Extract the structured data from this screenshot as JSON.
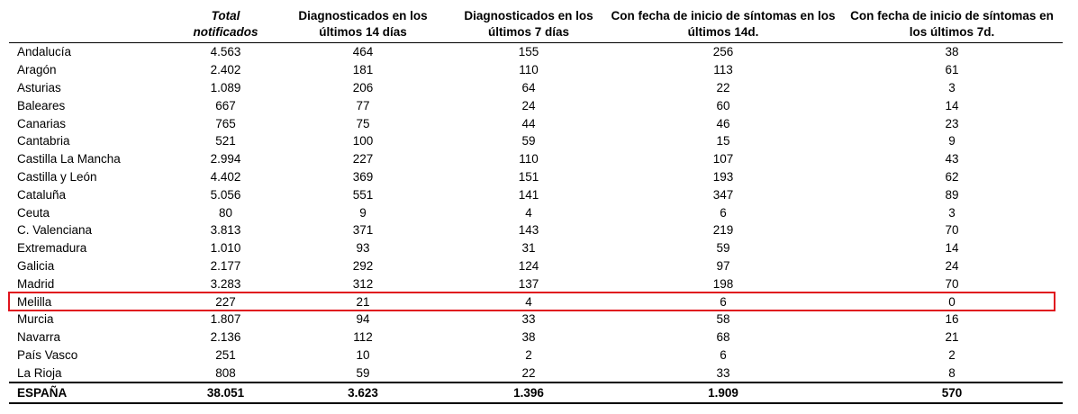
{
  "headers": [
    "",
    "Total notificados",
    "Diagnosticados en los últimos 14 días",
    "Diagnosticados en los últimos 7 días",
    "Con fecha de inicio de síntomas en los últimos 14d.",
    "Con fecha de inicio de síntomas en los últimos 7d."
  ],
  "rows": [
    [
      "Andalucía",
      "4.563",
      "464",
      "155",
      "256",
      "38"
    ],
    [
      "Aragón",
      "2.402",
      "181",
      "110",
      "113",
      "61"
    ],
    [
      "Asturias",
      "1.089",
      "206",
      "64",
      "22",
      "3"
    ],
    [
      "Baleares",
      "667",
      "77",
      "24",
      "60",
      "14"
    ],
    [
      "Canarias",
      "765",
      "75",
      "44",
      "46",
      "23"
    ],
    [
      "Cantabria",
      "521",
      "100",
      "59",
      "15",
      "9"
    ],
    [
      "Castilla La Mancha",
      "2.994",
      "227",
      "110",
      "107",
      "43"
    ],
    [
      "Castilla y León",
      "4.402",
      "369",
      "151",
      "193",
      "62"
    ],
    [
      "Cataluña",
      "5.056",
      "551",
      "141",
      "347",
      "89"
    ],
    [
      "Ceuta",
      "80",
      "9",
      "4",
      "6",
      "3"
    ],
    [
      "C. Valenciana",
      "3.813",
      "371",
      "143",
      "219",
      "70"
    ],
    [
      "Extremadura",
      "1.010",
      "93",
      "31",
      "59",
      "14"
    ],
    [
      "Galicia",
      "2.177",
      "292",
      "124",
      "97",
      "24"
    ],
    [
      "Madrid",
      "3.283",
      "312",
      "137",
      "198",
      "70"
    ],
    [
      "Melilla",
      "227",
      "21",
      "4",
      "6",
      "0"
    ],
    [
      "Murcia",
      "1.807",
      "94",
      "33",
      "58",
      "16"
    ],
    [
      "Navarra",
      "2.136",
      "112",
      "38",
      "68",
      "21"
    ],
    [
      "País Vasco",
      "251",
      "10",
      "2",
      "6",
      "2"
    ],
    [
      "La Rioja",
      "808",
      "59",
      "22",
      "33",
      "8"
    ]
  ],
  "total_row": [
    "ESPAÑA",
    "38.051",
    "3.623",
    "1.396",
    "1.909",
    "570"
  ],
  "highlighted_row": "Melilla",
  "highlight_color": "#e0141e"
}
